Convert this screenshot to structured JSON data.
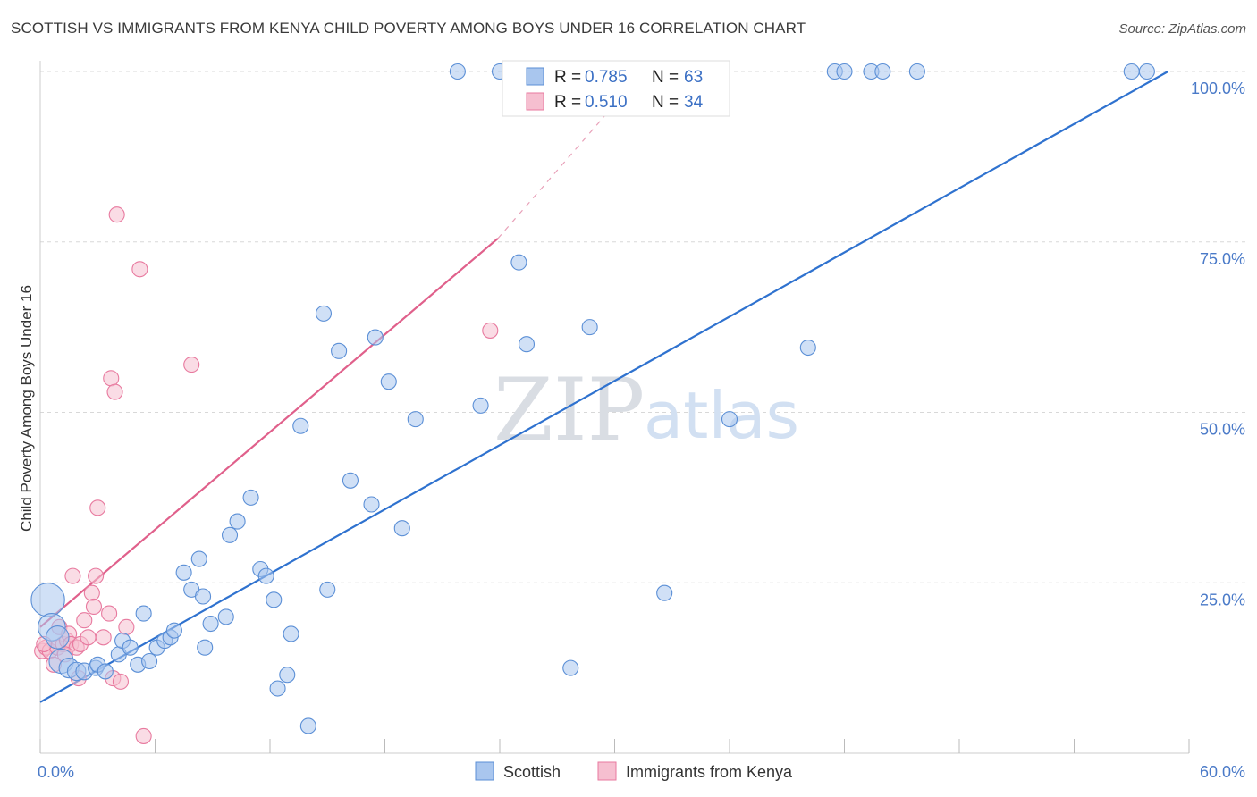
{
  "title": "SCOTTISH VS IMMIGRANTS FROM KENYA CHILD POVERTY AMONG BOYS UNDER 16 CORRELATION CHART",
  "source": "Source: ZipAtlas.com",
  "watermark": {
    "zip": "ZIP",
    "atlas": "atlas"
  },
  "colors": {
    "scottish_fill": "#a9c6ee",
    "scottish_stroke": "#5b8fd6",
    "scottish_line": "#2f72cf",
    "kenya_fill": "#f6bfd0",
    "kenya_stroke": "#e87a9f",
    "kenya_line": "#e0608b",
    "grid": "#d8d8d8",
    "tick_text": "#4a7ac8"
  },
  "legend": {
    "rows": [
      {
        "r_label": "R = ",
        "r_value": "0.785",
        "n_label": "N = ",
        "n_value": "63"
      },
      {
        "r_label": "R = ",
        "r_value": "0.510",
        "n_label": "N = ",
        "n_value": "34"
      }
    ]
  },
  "bottom_legend": {
    "scottish": "Scottish",
    "kenya": "Immigrants from Kenya"
  },
  "chart_data": {
    "type": "scatter",
    "title": "SCOTTISH VS IMMIGRANTS FROM KENYA CHILD POVERTY AMONG BOYS UNDER 16 CORRELATION CHART",
    "xlabel": "",
    "ylabel": "Child Poverty Among Boys Under 16",
    "xlim": [
      0,
      60
    ],
    "ylim": [
      0,
      100
    ],
    "x_tick_labels": [
      "0.0%",
      "60.0%"
    ],
    "y_tick_labels": [
      "25.0%",
      "50.0%",
      "75.0%",
      "100.0%"
    ],
    "y_tick_values": [
      25,
      50,
      75,
      100
    ],
    "grid": true,
    "legend_position": "top-center",
    "series": [
      {
        "name": "Scottish",
        "r": 0.785,
        "n": 63,
        "trend": {
          "x": [
            0,
            58.9
          ],
          "y": [
            7.5,
            100
          ]
        },
        "points": [
          [
            0.4,
            22.5,
            2.2
          ],
          [
            0.6,
            18.5,
            1.8
          ],
          [
            0.9,
            17,
            1.5
          ],
          [
            1.1,
            13.5,
            1.6
          ],
          [
            1.5,
            12.5,
            1.3
          ],
          [
            1.9,
            12,
            1.2
          ],
          [
            2.3,
            12,
            1.1
          ],
          [
            2.9,
            12.5,
            1
          ],
          [
            3.0,
            13,
            1
          ],
          [
            3.4,
            12,
            1
          ],
          [
            4.1,
            14.5,
            1
          ],
          [
            4.3,
            16.5,
            1
          ],
          [
            4.7,
            15.5,
            1
          ],
          [
            5.1,
            13,
            1
          ],
          [
            5.4,
            20.5,
            1
          ],
          [
            5.7,
            13.5,
            1
          ],
          [
            6.1,
            15.5,
            1
          ],
          [
            6.5,
            16.5,
            1
          ],
          [
            6.8,
            17,
            1
          ],
          [
            7.0,
            18,
            1
          ],
          [
            7.5,
            26.5,
            1
          ],
          [
            7.9,
            24,
            1
          ],
          [
            8.3,
            28.5,
            1
          ],
          [
            8.5,
            23,
            1
          ],
          [
            8.6,
            15.5,
            1
          ],
          [
            8.9,
            19,
            1
          ],
          [
            9.7,
            20,
            1
          ],
          [
            9.9,
            32,
            1
          ],
          [
            10.3,
            34,
            1
          ],
          [
            11.0,
            37.5,
            1
          ],
          [
            11.5,
            27,
            1
          ],
          [
            11.8,
            26,
            1
          ],
          [
            12.2,
            22.5,
            1
          ],
          [
            12.4,
            9.5,
            1
          ],
          [
            12.9,
            11.5,
            1
          ],
          [
            13.1,
            17.5,
            1
          ],
          [
            13.6,
            48,
            1
          ],
          [
            14.0,
            4,
            1
          ],
          [
            14.8,
            64.5,
            1
          ],
          [
            15.0,
            24,
            1
          ],
          [
            15.6,
            59,
            1
          ],
          [
            16.2,
            40,
            1
          ],
          [
            17.3,
            36.5,
            1
          ],
          [
            17.5,
            61,
            1
          ],
          [
            18.2,
            54.5,
            1
          ],
          [
            18.9,
            33,
            1
          ],
          [
            19.6,
            49,
            1
          ],
          [
            23.0,
            51,
            1
          ],
          [
            25.0,
            72,
            1
          ],
          [
            25.4,
            60,
            1
          ],
          [
            27.7,
            12.5,
            1
          ],
          [
            28.7,
            62.5,
            1
          ],
          [
            32.6,
            23.5,
            1
          ],
          [
            36.0,
            49,
            1
          ],
          [
            40.1,
            59.5,
            1
          ],
          [
            21.8,
            100,
            1
          ],
          [
            24.0,
            100,
            1
          ],
          [
            41.5,
            100,
            1
          ],
          [
            42.0,
            100,
            1
          ],
          [
            43.4,
            100,
            1
          ],
          [
            44.0,
            100,
            1
          ],
          [
            45.8,
            100,
            1
          ],
          [
            57.0,
            100,
            1
          ],
          [
            57.8,
            100,
            1
          ]
        ]
      },
      {
        "name": "Immigrants from Kenya",
        "r": 0.51,
        "n": 34,
        "trend": {
          "x": [
            0,
            23.9
          ],
          "y": [
            18.5,
            75.5
          ]
        },
        "trend_dashed": {
          "x": [
            23.9,
            31.5
          ],
          "y": [
            75.5,
            100
          ]
        },
        "points": [
          [
            0.1,
            15,
            1
          ],
          [
            0.3,
            15.5,
            1
          ],
          [
            0.5,
            15,
            1
          ],
          [
            0.7,
            13,
            1
          ],
          [
            0.9,
            15.5,
            1
          ],
          [
            1.0,
            18.5,
            1
          ],
          [
            1.2,
            16,
            1
          ],
          [
            1.4,
            16.5,
            1
          ],
          [
            1.5,
            17.5,
            1
          ],
          [
            1.6,
            16,
            1
          ],
          [
            1.7,
            26,
            1
          ],
          [
            1.9,
            15.5,
            1
          ],
          [
            2.0,
            11,
            1
          ],
          [
            2.1,
            16,
            1
          ],
          [
            2.3,
            19.5,
            1
          ],
          [
            2.5,
            17,
            1
          ],
          [
            2.7,
            23.5,
            1
          ],
          [
            2.8,
            21.5,
            1
          ],
          [
            2.9,
            26,
            1
          ],
          [
            3.0,
            36,
            1
          ],
          [
            3.3,
            17,
            1
          ],
          [
            3.6,
            20.5,
            1
          ],
          [
            3.7,
            55,
            1
          ],
          [
            3.8,
            11,
            1
          ],
          [
            3.9,
            53,
            1
          ],
          [
            4.0,
            79,
            1
          ],
          [
            4.2,
            10.5,
            1
          ],
          [
            4.5,
            18.5,
            1
          ],
          [
            5.2,
            71,
            1
          ],
          [
            5.4,
            2.5,
            1
          ],
          [
            7.9,
            57,
            1
          ],
          [
            0.2,
            16,
            1
          ],
          [
            1.3,
            14.5,
            1
          ],
          [
            23.5,
            62,
            1
          ]
        ]
      }
    ]
  }
}
